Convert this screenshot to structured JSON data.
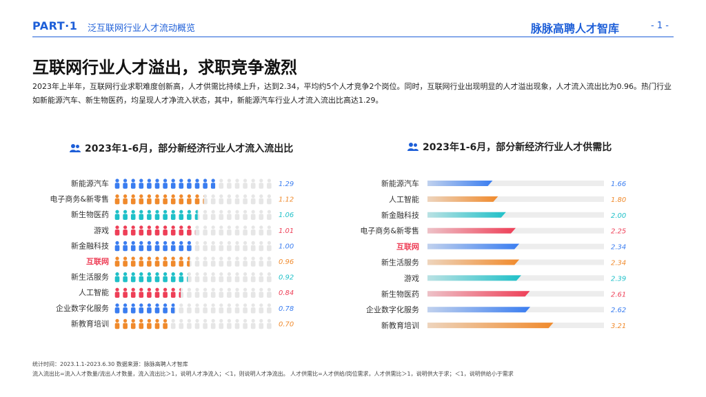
{
  "header": {
    "part": "PART·1",
    "section": "泛互联网行业人才流动概览",
    "brand": "脉脉高聘人才智库",
    "page": "- 1 -"
  },
  "main_title": "互联网行业人才溢出，求职竞争激烈",
  "summary": "2023年上半年，互联网行业求职难度创新高，人才供需比持续上升，达到2.34，平均约5个人才竞争2个岗位。同时，互联网行业出现明显的人才溢出现象，人才流入流出比为0.96。热门行业如新能源汽车、新生物医药，均呈现人才净流入状态，其中，新能源汽车行业人才流入流出比高达1.29。",
  "footnotes": {
    "line1": "统计时间：2023.1.1-2023.6.30    数据来源：脉脉高聘人才智库",
    "line2": "流入流出比=流入人才数量/流出人才数量，流入流出比＞1，说明人才净流入；＜1，则说明人才净流出。      人才供需比=人才供给/岗位需求，人才供需比＞1，说明供大于求；＜1，说明供给小于需求"
  },
  "colors": {
    "blue": "#3a7df0",
    "orange": "#f08a2c",
    "teal": "#1fc0c8",
    "red": "#ee3f57",
    "empty": "#e6e6e6",
    "accent": "#1e5fd8"
  },
  "chart_data": [
    {
      "type": "bar",
      "title": "2023年1-6月，部分新经济行业人才流入流出比",
      "categories": [
        "新能源汽车",
        "电子商务&新零售",
        "新生物医药",
        "游戏",
        "新金融科技",
        "互联网",
        "新生活服务",
        "人工智能",
        "企业数字化服务",
        "新教育培训"
      ],
      "values": [
        1.29,
        1.12,
        1.06,
        1.01,
        1.0,
        0.96,
        0.92,
        0.84,
        0.78,
        0.7
      ],
      "labels": [
        "1.29",
        "1.12",
        "1.06",
        "1.01",
        "1.00",
        "0.96",
        "0.92",
        "0.84",
        "0.78",
        "0.70"
      ],
      "colors": [
        "blue",
        "orange",
        "teal",
        "red",
        "blue",
        "orange",
        "teal",
        "red",
        "blue",
        "orange"
      ],
      "highlight": "互联网",
      "icons_total": 20,
      "icon_value": 0.1
    },
    {
      "type": "bar",
      "title": "2023年1-6月，部分新经济行业人才供需比",
      "categories": [
        "新能源汽车",
        "人工智能",
        "新金融科技",
        "电子商务&新零售",
        "互联网",
        "新生活服务",
        "游戏",
        "新生物医药",
        "企业数字化服务",
        "新教育培训"
      ],
      "values": [
        1.66,
        1.8,
        2.0,
        2.25,
        2.34,
        2.34,
        2.39,
        2.61,
        2.62,
        3.21
      ],
      "labels": [
        "1.66",
        "1.80",
        "2.00",
        "2.25",
        "2.34",
        "2.34",
        "2.39",
        "2.61",
        "2.62",
        "3.21"
      ],
      "colors": [
        "blue",
        "orange",
        "teal",
        "red",
        "blue",
        "orange",
        "teal",
        "red",
        "blue",
        "orange"
      ],
      "highlight": "互联网",
      "xlim": [
        0,
        4.5
      ]
    }
  ]
}
